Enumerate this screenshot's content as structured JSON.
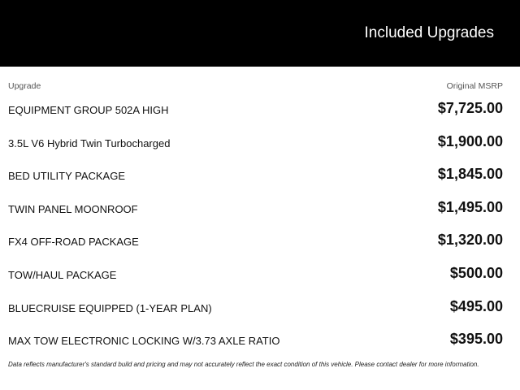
{
  "header": {
    "title": "Included Upgrades"
  },
  "table": {
    "col_upgrade": "Upgrade",
    "col_msrp": "Original MSRP",
    "rows": [
      {
        "name": "EQUIPMENT GROUP 502A HIGH",
        "price": "$7,725.00"
      },
      {
        "name": "3.5L V6 Hybrid Twin Turbocharged",
        "price": "$1,900.00"
      },
      {
        "name": "BED UTILITY PACKAGE",
        "price": "$1,845.00"
      },
      {
        "name": "TWIN PANEL MOONROOF",
        "price": "$1,495.00"
      },
      {
        "name": "FX4 OFF-ROAD PACKAGE",
        "price": "$1,320.00"
      },
      {
        "name": "TOW/HAUL PACKAGE",
        "price": "$500.00"
      },
      {
        "name": "BLUECRUISE EQUIPPED (1-YEAR PLAN)",
        "price": "$495.00"
      },
      {
        "name": "MAX TOW ELECTRONIC LOCKING W/3.73 AXLE RATIO",
        "price": "$395.00"
      }
    ]
  },
  "disclaimer": "Data reflects manufacturer's standard build and pricing and may not accurately reflect the exact condition of this vehicle. Please contact dealer for more information."
}
